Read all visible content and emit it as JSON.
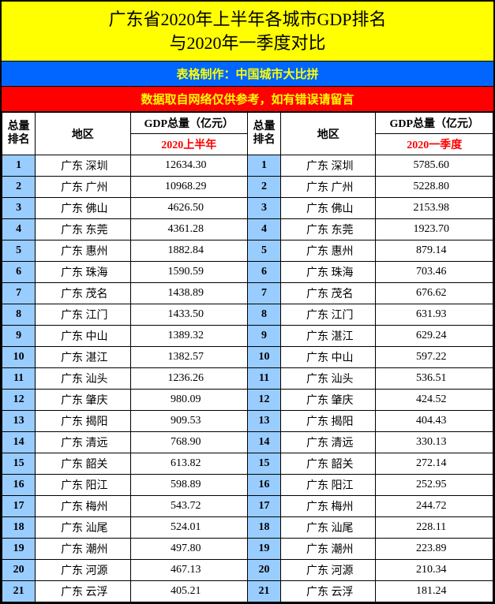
{
  "title": {
    "line1": "广东省2020年上半年各城市GDP排名",
    "line2": "与2020年一季度对比"
  },
  "credit": "表格制作：中国城市大比拼",
  "notice": "数据取自网络仅供参考，如有错误请留言",
  "headers": {
    "rank": "总量排名",
    "region": "地区",
    "gdp": "GDP总量（亿元）",
    "period_left": "2020上半年",
    "period_right": "2020一季度"
  },
  "colors": {
    "title_bg": "#ffff00",
    "credit_bg": "#0066ff",
    "credit_fg": "#ffff00",
    "notice_bg": "#ff0000",
    "notice_fg": "#ffff00",
    "rank_bg": "#99ccff",
    "period_fg": "#ff0000",
    "border": "#000000"
  },
  "left": [
    {
      "rank": "1",
      "region": "广东 深圳",
      "gdp": "12634.30"
    },
    {
      "rank": "2",
      "region": "广东 广州",
      "gdp": "10968.29"
    },
    {
      "rank": "3",
      "region": "广东 佛山",
      "gdp": "4626.50"
    },
    {
      "rank": "4",
      "region": "广东 东莞",
      "gdp": "4361.28"
    },
    {
      "rank": "5",
      "region": "广东 惠州",
      "gdp": "1882.84"
    },
    {
      "rank": "6",
      "region": "广东 珠海",
      "gdp": "1590.59"
    },
    {
      "rank": "7",
      "region": "广东 茂名",
      "gdp": "1438.89"
    },
    {
      "rank": "8",
      "region": "广东 江门",
      "gdp": "1433.50"
    },
    {
      "rank": "9",
      "region": "广东 中山",
      "gdp": "1389.32"
    },
    {
      "rank": "10",
      "region": "广东 湛江",
      "gdp": "1382.57"
    },
    {
      "rank": "11",
      "region": "广东 汕头",
      "gdp": "1236.26"
    },
    {
      "rank": "12",
      "region": "广东 肇庆",
      "gdp": "980.09"
    },
    {
      "rank": "13",
      "region": "广东 揭阳",
      "gdp": "909.53"
    },
    {
      "rank": "14",
      "region": "广东 清远",
      "gdp": "768.90"
    },
    {
      "rank": "15",
      "region": "广东 韶关",
      "gdp": "613.82"
    },
    {
      "rank": "16",
      "region": "广东 阳江",
      "gdp": "598.89"
    },
    {
      "rank": "17",
      "region": "广东 梅州",
      "gdp": "543.72"
    },
    {
      "rank": "18",
      "region": "广东 汕尾",
      "gdp": "524.01"
    },
    {
      "rank": "19",
      "region": "广东 潮州",
      "gdp": "497.80"
    },
    {
      "rank": "20",
      "region": "广东 河源",
      "gdp": "467.13"
    },
    {
      "rank": "21",
      "region": "广东 云浮",
      "gdp": "405.21"
    }
  ],
  "right": [
    {
      "rank": "1",
      "region": "广东 深圳",
      "gdp": "5785.60"
    },
    {
      "rank": "2",
      "region": "广东 广州",
      "gdp": "5228.80"
    },
    {
      "rank": "3",
      "region": "广东 佛山",
      "gdp": "2153.98"
    },
    {
      "rank": "4",
      "region": "广东 东莞",
      "gdp": "1923.70"
    },
    {
      "rank": "5",
      "region": "广东 惠州",
      "gdp": "879.14"
    },
    {
      "rank": "6",
      "region": "广东 珠海",
      "gdp": "703.46"
    },
    {
      "rank": "7",
      "region": "广东 茂名",
      "gdp": "676.62"
    },
    {
      "rank": "8",
      "region": "广东 江门",
      "gdp": "631.93"
    },
    {
      "rank": "9",
      "region": "广东 湛江",
      "gdp": "629.24"
    },
    {
      "rank": "10",
      "region": "广东 中山",
      "gdp": "597.22"
    },
    {
      "rank": "11",
      "region": "广东 汕头",
      "gdp": "536.51"
    },
    {
      "rank": "12",
      "region": "广东 肇庆",
      "gdp": "424.52"
    },
    {
      "rank": "13",
      "region": "广东 揭阳",
      "gdp": "404.43"
    },
    {
      "rank": "14",
      "region": "广东 清远",
      "gdp": "330.13"
    },
    {
      "rank": "15",
      "region": "广东 韶关",
      "gdp": "272.14"
    },
    {
      "rank": "16",
      "region": "广东 阳江",
      "gdp": "252.95"
    },
    {
      "rank": "17",
      "region": "广东 梅州",
      "gdp": "244.72"
    },
    {
      "rank": "18",
      "region": "广东 汕尾",
      "gdp": "228.11"
    },
    {
      "rank": "19",
      "region": "广东 潮州",
      "gdp": "223.89"
    },
    {
      "rank": "20",
      "region": "广东 河源",
      "gdp": "210.34"
    },
    {
      "rank": "21",
      "region": "广东 云浮",
      "gdp": "181.24"
    }
  ]
}
